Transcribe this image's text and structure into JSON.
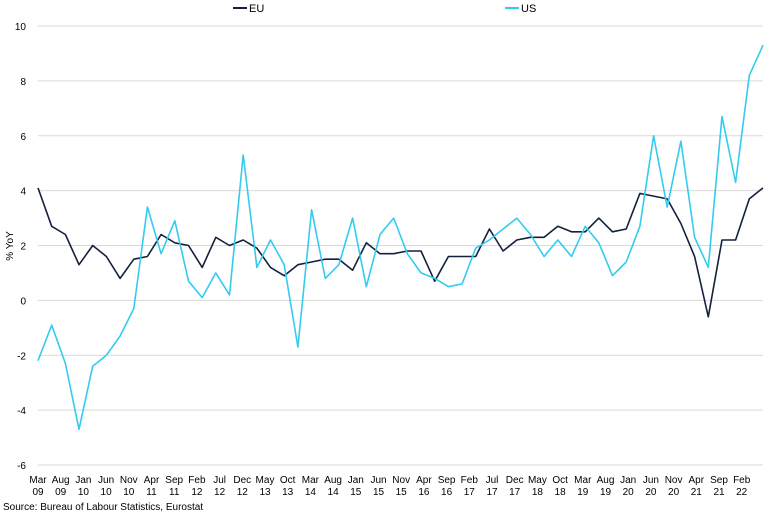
{
  "chart_data": {
    "type": "line",
    "title": "",
    "xlabel": "",
    "ylabel": "% YoY",
    "ylim": [
      -6,
      10
    ],
    "yticks": [
      -6,
      -4,
      -2,
      0,
      2,
      4,
      6,
      8,
      10
    ],
    "grid": "horizontal",
    "legend_position": "top-center",
    "x_tick_labels": [
      [
        "Mar",
        "09"
      ],
      [
        "Aug",
        "09"
      ],
      [
        "Jan",
        "10"
      ],
      [
        "Jun",
        "10"
      ],
      [
        "Nov",
        "10"
      ],
      [
        "Apr",
        "11"
      ],
      [
        "Sep",
        "11"
      ],
      [
        "Feb",
        "12"
      ],
      [
        "Jul",
        "12"
      ],
      [
        "Dec",
        "12"
      ],
      [
        "May",
        "13"
      ],
      [
        "Oct",
        "13"
      ],
      [
        "Mar",
        "14"
      ],
      [
        "Aug",
        "14"
      ],
      [
        "Jan",
        "15"
      ],
      [
        "Jun",
        "15"
      ],
      [
        "Nov",
        "15"
      ],
      [
        "Apr",
        "16"
      ],
      [
        "Sep",
        "16"
      ],
      [
        "Feb",
        "17"
      ],
      [
        "Jul",
        "17"
      ],
      [
        "Dec",
        "17"
      ],
      [
        "May",
        "18"
      ],
      [
        "Oct",
        "18"
      ],
      [
        "Mar",
        "19"
      ],
      [
        "Aug",
        "19"
      ],
      [
        "Jan",
        "20"
      ],
      [
        "Jun",
        "20"
      ],
      [
        "Nov",
        "20"
      ],
      [
        "Apr",
        "21"
      ],
      [
        "Sep",
        "21"
      ],
      [
        "Feb",
        "22"
      ]
    ],
    "series": [
      {
        "name": "EU",
        "color": "#14213d",
        "values": [
          4.1,
          2.7,
          2.4,
          1.3,
          2.0,
          1.6,
          0.8,
          1.5,
          1.6,
          2.4,
          2.1,
          2.0,
          1.2,
          2.3,
          2.0,
          2.2,
          1.9,
          1.2,
          0.9,
          1.3,
          1.4,
          1.5,
          1.5,
          1.1,
          2.1,
          1.7,
          1.7,
          1.8,
          1.8,
          0.7,
          1.6,
          1.6,
          1.6,
          2.6,
          1.8,
          2.2,
          2.3,
          2.3,
          2.7,
          2.5,
          2.5,
          3.0,
          2.5,
          2.6,
          3.9,
          3.8,
          3.7,
          2.8,
          1.6,
          -0.6,
          2.2,
          2.2,
          3.7,
          4.1
        ]
      },
      {
        "name": "US",
        "color": "#33ccee",
        "values": [
          -2.2,
          -0.9,
          -2.3,
          -4.7,
          -2.4,
          -2.0,
          -1.3,
          -0.3,
          3.4,
          1.7,
          2.9,
          0.7,
          0.1,
          1.0,
          0.2,
          5.3,
          1.2,
          2.2,
          1.3,
          -1.7,
          3.3,
          0.8,
          1.3,
          3.0,
          0.5,
          2.4,
          3.0,
          1.7,
          1.0,
          0.8,
          0.5,
          0.6,
          1.9,
          2.2,
          2.6,
          3.0,
          2.4,
          1.6,
          2.2,
          1.6,
          2.7,
          2.1,
          0.9,
          1.4,
          2.7,
          6.0,
          3.4,
          5.8,
          2.3,
          1.2,
          6.7,
          4.3,
          8.2,
          9.3
        ]
      }
    ]
  },
  "footer": {
    "source": "Source: Bureau of Labour Statistics, Eurostat"
  }
}
